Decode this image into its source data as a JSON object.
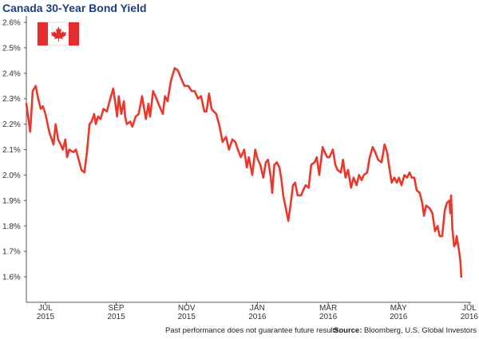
{
  "chart_data": {
    "type": "line",
    "title": "Canada 30-Year Bond Yield",
    "disclaimer": "Past performance does not guarantee future results.",
    "source_label": "Source:",
    "source": "Bloomberg, U.S. Global Investors",
    "color": "#e8392c",
    "grid": false,
    "xlim": [
      2015.455,
      2016.504
    ],
    "ylim": [
      1.5,
      2.625
    ],
    "xticks": [
      {
        "value": 2015.5,
        "label": "JUL 2015"
      },
      {
        "value": 2015.667,
        "label": "SEP 2015"
      },
      {
        "value": 2015.833,
        "label": "NOV 2015"
      },
      {
        "value": 2016.0,
        "label": "JAN 2016"
      },
      {
        "value": 2016.167,
        "label": "MAR 2016"
      },
      {
        "value": 2016.333,
        "label": "MAY 2016"
      },
      {
        "value": 2016.5,
        "label": "JUL 2016"
      }
    ],
    "yticks": [
      {
        "value": 1.6,
        "label": "1.6%"
      },
      {
        "value": 1.7,
        "label": "1.7%"
      },
      {
        "value": 1.8,
        "label": "1.8%"
      },
      {
        "value": 1.9,
        "label": "1.9%"
      },
      {
        "value": 2.0,
        "label": "2.0%"
      },
      {
        "value": 2.1,
        "label": "2.1%"
      },
      {
        "value": 2.2,
        "label": "2.2%"
      },
      {
        "value": 2.3,
        "label": "2.3%"
      },
      {
        "value": 2.4,
        "label": "2.4%"
      },
      {
        "value": 2.5,
        "label": "2.5%"
      },
      {
        "value": 2.6,
        "label": "2.6%"
      }
    ],
    "x": [
      2015.455,
      2015.46,
      2015.464,
      2015.47,
      2015.477,
      2015.483,
      2015.489,
      2015.494,
      2015.5,
      2015.509,
      2015.513,
      2015.519,
      2015.524,
      2015.53,
      2015.536,
      2015.541,
      2015.547,
      2015.551,
      2015.556,
      2015.566,
      2015.572,
      2015.577,
      2015.585,
      2015.592,
      2015.598,
      2015.604,
      2015.609,
      2015.615,
      2015.619,
      2015.624,
      2015.63,
      2015.637,
      2015.645,
      2015.653,
      2015.66,
      2015.666,
      2015.669,
      2015.673,
      2015.679,
      2015.685,
      2015.688,
      2015.692,
      2015.7,
      2015.705,
      2015.713,
      2015.72,
      2015.728,
      2015.734,
      2015.737,
      2015.743,
      2015.747,
      2015.754,
      2015.762,
      2015.769,
      2015.777,
      2015.782,
      2015.788,
      2015.796,
      2015.805,
      2015.813,
      2015.82,
      2015.828,
      2015.837,
      2015.845,
      2015.852,
      2015.86,
      2015.867,
      2015.875,
      2015.88,
      2015.886,
      2015.892,
      2015.897,
      2015.903,
      2015.911,
      2015.918,
      2015.926,
      2015.933,
      2015.941,
      2015.948,
      2015.954,
      2015.961,
      2015.969,
      2015.975,
      2015.98,
      2015.988,
      2015.995,
      2015.999,
      2016.007,
      2016.014,
      2016.02,
      2016.025,
      2016.031,
      2016.035,
      2016.04,
      2016.046,
      2016.052,
      2016.057,
      2016.061,
      2016.067,
      2016.073,
      2016.078,
      2016.084,
      2016.089,
      2016.095,
      2016.103,
      2016.108,
      2016.114,
      2016.121,
      2016.127,
      2016.135,
      2016.14,
      2016.146,
      2016.154,
      2016.159,
      2016.165,
      2016.17,
      2016.178,
      2016.184,
      2016.189,
      2016.197,
      2016.202,
      2016.208,
      2016.214,
      2016.221,
      2016.227,
      2016.234,
      2016.24,
      2016.246,
      2016.251,
      2016.259,
      2016.265,
      2016.272,
      2016.278,
      2016.285,
      2016.293,
      2016.3,
      2016.306,
      2016.312,
      2016.317,
      2016.323,
      2016.329,
      2016.334,
      2016.34,
      2016.347,
      2016.353,
      2016.359,
      2016.364,
      2016.37,
      2016.376,
      2016.383,
      2016.389,
      2016.393,
      2016.398,
      2016.406,
      2016.413,
      2016.419,
      2016.425,
      2016.43,
      2016.436,
      2016.442,
      2016.447,
      2016.453,
      2016.455,
      2016.457,
      2016.46,
      2016.464,
      2016.468,
      2016.47,
      2016.476,
      2016.479,
      2016.481
    ],
    "values": [
      2.28,
      2.22,
      2.17,
      2.33,
      2.35,
      2.3,
      2.26,
      2.27,
      2.24,
      2.17,
      2.15,
      2.12,
      2.2,
      2.14,
      2.12,
      2.1,
      2.14,
      2.07,
      2.1,
      2.09,
      2.1,
      2.07,
      2.02,
      2.01,
      2.09,
      2.2,
      2.21,
      2.24,
      2.2,
      2.23,
      2.22,
      2.26,
      2.25,
      2.3,
      2.34,
      2.27,
      2.23,
      2.31,
      2.24,
      2.29,
      2.23,
      2.2,
      2.21,
      2.19,
      2.23,
      2.24,
      2.31,
      2.25,
      2.22,
      2.28,
      2.23,
      2.33,
      2.3,
      2.27,
      2.24,
      2.31,
      2.29,
      2.37,
      2.42,
      2.41,
      2.38,
      2.35,
      2.35,
      2.33,
      2.33,
      2.3,
      2.31,
      2.25,
      2.25,
      2.32,
      2.26,
      2.25,
      2.24,
      2.19,
      2.13,
      2.15,
      2.1,
      2.14,
      2.13,
      2.1,
      2.07,
      2.1,
      2.03,
      2.07,
      2.0,
      2.1,
      2.07,
      2.04,
      1.99,
      2.05,
      2.06,
      2.0,
      1.93,
      2.04,
      2.05,
      2.03,
      1.98,
      1.92,
      1.87,
      1.82,
      1.88,
      1.96,
      1.97,
      1.92,
      1.92,
      1.94,
      1.96,
      1.95,
      2.04,
      2.05,
      2.07,
      2.0,
      2.11,
      2.09,
      2.07,
      2.07,
      2.1,
      2.04,
      2.02,
      2.01,
      2.06,
      1.99,
      2.02,
      1.95,
      1.99,
      1.96,
      2.0,
      1.98,
      2.0,
      2.01,
      2.07,
      2.11,
      2.09,
      2.06,
      2.05,
      2.12,
      2.09,
      2.02,
      1.97,
      1.99,
      1.97,
      1.99,
      1.96,
      2.0,
      1.99,
      2.01,
      1.99,
      1.99,
      1.94,
      1.93,
      1.89,
      1.84,
      1.88,
      1.87,
      1.85,
      1.78,
      1.8,
      1.76,
      1.76,
      1.86,
      1.89,
      1.9,
      1.85,
      1.92,
      1.79,
      1.72,
      1.73,
      1.76,
      1.7,
      1.66,
      1.6
    ]
  }
}
